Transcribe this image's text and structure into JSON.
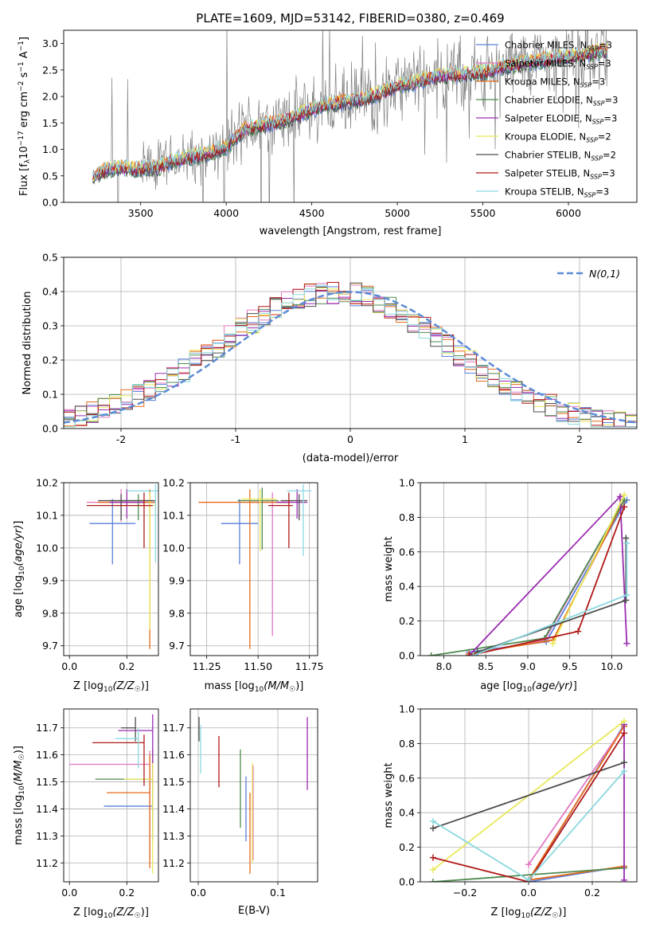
{
  "colors": {
    "chabrier_miles": "#5b7fdc",
    "salpeter_miles": "#e377c2",
    "kroupa_miles": "#e56b18",
    "chabrier_elodie": "#4f8a4f",
    "salpeter_elodie": "#9a2cb0",
    "kroupa_elodie": "#e8e858",
    "chabrier_stelib": "#4d4d4d",
    "salpeter_stelib": "#b01818",
    "kroupa_stelib": "#8ad8e0",
    "normal": "#5b8bd6",
    "grid": "#b0b0b0"
  },
  "chart_data": [
    {
      "type": "line",
      "title": "PLATE=1609, MJD=53142, FIBERID=0380, z=0.469",
      "xlabel": "wavelength [Angstrom, rest frame]",
      "ylabel": "Flux [fλ10⁻¹⁷ erg cm⁻² s⁻¹ A⁻¹]",
      "xlim": [
        3050,
        6400
      ],
      "ylim": [
        0,
        3.25
      ],
      "xticks": [
        3500,
        4000,
        4500,
        5000,
        5500,
        6000
      ],
      "yticks": [
        0.0,
        0.5,
        1.0,
        1.5,
        2.0,
        2.5,
        3.0
      ],
      "grid": false,
      "legend_position": "top-right",
      "continuum": {
        "x": [
          3220,
          3300,
          3400,
          3500,
          3600,
          3700,
          3800,
          3900,
          4000,
          4100,
          4200,
          4300,
          4400,
          4500,
          4600,
          4700,
          4800,
          4900,
          5000,
          5100,
          5200,
          5300,
          5400,
          5500,
          5600,
          5700,
          5800,
          5900,
          6000,
          6100,
          6200
        ],
        "y": [
          0.45,
          0.62,
          0.65,
          0.62,
          0.66,
          0.78,
          0.85,
          0.92,
          1.05,
          1.35,
          1.45,
          1.5,
          1.62,
          1.75,
          1.85,
          1.9,
          1.95,
          2.05,
          2.2,
          2.25,
          2.35,
          2.4,
          2.42,
          2.45,
          2.55,
          2.6,
          2.65,
          2.7,
          2.75,
          2.8,
          2.85
        ]
      },
      "series": [
        {
          "name": "Chabrier MILES, N_SSP=3"
        },
        {
          "name": "Salpeter MILES, N_SSP=3"
        },
        {
          "name": "Kroupa MILES, N_SSP=3"
        },
        {
          "name": "Chabrier ELODIE, N_SSP=3"
        },
        {
          "name": "Salpeter ELODIE, N_SSP=3"
        },
        {
          "name": "Kroupa ELODIE, N_SSP=2"
        },
        {
          "name": "Chabrier STELIB, N_SSP=2"
        },
        {
          "name": "Salpeter STELIB, N_SSP=3"
        },
        {
          "name": "Kroupa STELIB, N_SSP=3"
        }
      ]
    },
    {
      "type": "histogram",
      "xlabel": "(data-model)/error",
      "ylabel": "Normed distribution",
      "xlim": [
        -2.5,
        2.5
      ],
      "ylim": [
        0,
        0.5
      ],
      "xticks": [
        -2,
        -1,
        0,
        1,
        2
      ],
      "yticks": [
        0.0,
        0.1,
        0.2,
        0.3,
        0.4,
        0.5
      ],
      "grid": true,
      "legend": "N(0,1)",
      "legend_position": "top-right",
      "bin_width": 0.1,
      "bin_start": -2.5
    },
    {
      "type": "errorbar",
      "xlabel": "Z [log10(Z/Z☉)]",
      "ylabel": "age  [log10(age/yr)]",
      "xlim": [
        -0.02,
        0.31
      ],
      "ylim": [
        9.67,
        10.2
      ],
      "xticks": [
        0.0,
        0.2
      ],
      "yticks": [
        9.7,
        9.8,
        9.9,
        10.0,
        10.1,
        10.2
      ],
      "grid": true,
      "points": [
        {
          "series": "chabrier_miles",
          "x": 0.15,
          "y": 10.075,
          "xerr": [
            0.08,
            0.08
          ],
          "yerr": [
            0.125,
            0.075
          ]
        },
        {
          "series": "salpeter_miles",
          "x": 0.18,
          "y": 10.14,
          "xerr": [
            0.12,
            0.12
          ],
          "yerr": [
            0.06,
            0.04
          ]
        },
        {
          "series": "kroupa_miles",
          "x": 0.28,
          "y": 10.14,
          "xerr": [
            0.18,
            0.02
          ],
          "yerr": [
            0.45,
            0.04
          ]
        },
        {
          "series": "chabrier_elodie",
          "x": 0.24,
          "y": 10.145,
          "xerr": [
            0.1,
            0.05
          ],
          "yerr": [
            0.06,
            0.02
          ]
        },
        {
          "series": "salpeter_elodie",
          "x": 0.2,
          "y": 10.14,
          "xerr": [
            0.06,
            0.06
          ],
          "yerr": [
            0.05,
            0.04
          ]
        },
        {
          "series": "kroupa_elodie",
          "x": 0.28,
          "y": 10.13,
          "xerr": [
            0.1,
            0.02
          ],
          "yerr": [
            0.38,
            0.04
          ]
        },
        {
          "series": "chabrier_stelib",
          "x": 0.18,
          "y": 10.145,
          "xerr": [
            0.08,
            0.12
          ],
          "yerr": [
            0.06,
            0.02
          ]
        },
        {
          "series": "salpeter_stelib",
          "x": 0.26,
          "y": 10.13,
          "xerr": [
            0.2,
            0.03
          ],
          "yerr": [
            0.13,
            0.04
          ]
        },
        {
          "series": "kroupa_stelib",
          "x": 0.3,
          "y": 10.175,
          "xerr": [
            0.1,
            0.02
          ],
          "yerr": [
            0.22,
            0.02
          ]
        }
      ]
    },
    {
      "type": "errorbar",
      "xlabel": "mass [log10(M/M☉)]",
      "ylabel": "",
      "xlim": [
        11.17,
        11.79
      ],
      "ylim": [
        9.67,
        10.2
      ],
      "xticks": [
        11.25,
        11.5,
        11.75
      ],
      "yticks": [
        9.7,
        9.8,
        9.9,
        10.0,
        10.1,
        10.2
      ],
      "grid": true,
      "points": [
        {
          "series": "chabrier_miles",
          "x": 11.41,
          "y": 10.075,
          "xerr": [
            0.09,
            0.09
          ],
          "yerr": [
            0.125,
            0.075
          ]
        },
        {
          "series": "salpeter_miles",
          "x": 11.57,
          "y": 10.14,
          "xerr": [
            0.11,
            0.08
          ],
          "yerr": [
            0.41,
            0.03
          ]
        },
        {
          "series": "kroupa_miles",
          "x": 11.46,
          "y": 10.14,
          "xerr": [
            0.25,
            0.2
          ],
          "yerr": [
            0.45,
            0.04
          ]
        },
        {
          "series": "chabrier_elodie",
          "x": 11.52,
          "y": 10.145,
          "xerr": [
            0.12,
            0.08
          ],
          "yerr": [
            0.15,
            0.04
          ]
        },
        {
          "series": "salpeter_elodie",
          "x": 11.69,
          "y": 10.14,
          "xerr": [
            0.1,
            0.05
          ],
          "yerr": [
            0.05,
            0.04
          ]
        },
        {
          "series": "kroupa_elodie",
          "x": 11.51,
          "y": 10.15,
          "xerr": [
            0.09,
            0.08
          ],
          "yerr": [
            0.16,
            0.03
          ]
        },
        {
          "series": "chabrier_stelib",
          "x": 11.7,
          "y": 10.145,
          "xerr": [
            0.09,
            0.04
          ],
          "yerr": [
            0.06,
            0.02
          ]
        },
        {
          "series": "salpeter_stelib",
          "x": 11.65,
          "y": 10.13,
          "xerr": [
            0.1,
            0.02
          ],
          "yerr": [
            0.13,
            0.04
          ]
        },
        {
          "series": "kroupa_stelib",
          "x": 11.72,
          "y": 10.175,
          "xerr": [
            0.08,
            0.04
          ],
          "yerr": [
            0.2,
            0.02
          ]
        }
      ]
    },
    {
      "type": "line",
      "xlabel": "age  [log10(age/yr)]",
      "ylabel": "mass weight",
      "xlim": [
        7.72,
        10.3
      ],
      "ylim": [
        0,
        1.0
      ],
      "xticks": [
        8.0,
        8.5,
        9.0,
        9.5,
        10.0
      ],
      "yticks": [
        0.0,
        0.2,
        0.4,
        0.6,
        0.8,
        1.0
      ],
      "grid": true,
      "series_points": [
        {
          "series": "chabrier_miles",
          "x": [
            8.3,
            9.22,
            10.18
          ],
          "y": [
            0.02,
            0.08,
            0.9
          ]
        },
        {
          "series": "salpeter_miles",
          "x": [
            8.34,
            9.2,
            10.15
          ],
          "y": [
            0.01,
            0.09,
            0.9
          ]
        },
        {
          "series": "kroupa_miles",
          "x": [
            8.3,
            9.3,
            10.15
          ],
          "y": [
            0.01,
            0.09,
            0.9
          ]
        },
        {
          "series": "chabrier_elodie",
          "x": [
            7.85,
            9.2,
            10.15
          ],
          "y": [
            0.0,
            0.1,
            0.9
          ]
        },
        {
          "series": "salpeter_elodie",
          "x": [
            8.3,
            10.1,
            10.18
          ],
          "y": [
            0.0,
            0.92,
            0.07
          ]
        },
        {
          "series": "kroupa_elodie",
          "x": [
            9.3,
            10.15
          ],
          "y": [
            0.07,
            0.93
          ]
        },
        {
          "series": "chabrier_stelib",
          "x": [
            8.4,
            10.17,
            10.17
          ],
          "y": [
            0.02,
            0.32,
            0.68
          ]
        },
        {
          "series": "salpeter_stelib",
          "x": [
            8.3,
            9.6,
            10.15
          ],
          "y": [
            0.0,
            0.14,
            0.86
          ]
        },
        {
          "series": "kroupa_stelib",
          "x": [
            8.35,
            10.18,
            10.18
          ],
          "y": [
            0.0,
            0.35,
            0.65
          ]
        }
      ]
    },
    {
      "type": "errorbar",
      "xlabel": "Z [log10(Z/Z☉)]",
      "ylabel": "mass [log10(M/M☉)]",
      "xlim": [
        -0.02,
        0.31
      ],
      "ylim": [
        11.13,
        11.77
      ],
      "xticks": [
        0.0,
        0.2
      ],
      "yticks": [
        11.2,
        11.3,
        11.4,
        11.5,
        11.6,
        11.7
      ],
      "grid": true,
      "points": [
        {
          "series": "chabrier_miles",
          "x": 0.29,
          "y": 11.41,
          "xerr": [
            0.17,
            0.0
          ],
          "yerr": [
            0.13,
            0.06
          ]
        },
        {
          "series": "salpeter_miles",
          "x": 0.28,
          "y": 11.565,
          "xerr": [
            0.28,
            0.0
          ],
          "yerr": [
            0.35,
            0.05
          ]
        },
        {
          "series": "kroupa_miles",
          "x": 0.28,
          "y": 11.46,
          "xerr": [
            0.15,
            0.0
          ],
          "yerr": [
            0.28,
            0.14
          ]
        },
        {
          "series": "chabrier_elodie",
          "x": 0.29,
          "y": 11.51,
          "xerr": [
            0.2,
            0.0
          ],
          "yerr": [
            0.18,
            0.11
          ]
        },
        {
          "series": "salpeter_elodie",
          "x": 0.29,
          "y": 11.69,
          "xerr": [
            0.12,
            0.0
          ],
          "yerr": [
            0.21,
            0.06
          ]
        },
        {
          "series": "kroupa_elodie",
          "x": 0.29,
          "y": 11.51,
          "xerr": [
            0.1,
            0.0
          ],
          "yerr": [
            0.35,
            0.06
          ]
        },
        {
          "series": "chabrier_stelib",
          "x": 0.23,
          "y": 11.7,
          "xerr": [
            0.05,
            0.0
          ],
          "yerr": [
            0.05,
            0.04
          ]
        },
        {
          "series": "salpeter_stelib",
          "x": 0.26,
          "y": 11.645,
          "xerr": [
            0.18,
            0.0
          ],
          "yerr": [
            0.16,
            0.03
          ]
        },
        {
          "series": "kroupa_stelib",
          "x": 0.24,
          "y": 11.66,
          "xerr": [
            0.08,
            0.0
          ],
          "yerr": [
            0.11,
            0.04
          ]
        }
      ]
    },
    {
      "type": "errorbar",
      "xlabel": "E(B-V)",
      "ylabel": "",
      "xlim": [
        -0.01,
        0.15
      ],
      "ylim": [
        11.13,
        11.77
      ],
      "xticks": [
        0.0,
        0.1
      ],
      "yticks": [
        11.2,
        11.3,
        11.4,
        11.5,
        11.6,
        11.7
      ],
      "grid": true,
      "points": [
        {
          "series": "chabrier_miles",
          "x": 0.06,
          "y": 11.41,
          "yerr": [
            0.13,
            0.11
          ]
        },
        {
          "series": "salpeter_miles",
          "x": 0.069,
          "y": 11.56,
          "yerr": [
            0.35,
            0.0
          ]
        },
        {
          "series": "kroupa_miles",
          "x": 0.065,
          "y": 11.46,
          "yerr": [
            0.3,
            0.0
          ]
        },
        {
          "series": "chabrier_elodie",
          "x": 0.053,
          "y": 11.5,
          "yerr": [
            0.17,
            0.12
          ]
        },
        {
          "series": "salpeter_elodie",
          "x": 0.137,
          "y": 11.65,
          "yerr": [
            0.18,
            0.09
          ]
        },
        {
          "series": "kroupa_elodie",
          "x": 0.068,
          "y": 11.5,
          "yerr": [
            0.3,
            0.07
          ]
        },
        {
          "series": "chabrier_stelib",
          "x": 0.001,
          "y": 11.7,
          "yerr": [
            0.05,
            0.04
          ]
        },
        {
          "series": "salpeter_stelib",
          "x": 0.026,
          "y": 11.6,
          "yerr": [
            0.12,
            0.07
          ]
        },
        {
          "series": "kroupa_stelib",
          "x": 0.003,
          "y": 11.65,
          "yerr": [
            0.12,
            0.06
          ]
        }
      ]
    },
    {
      "type": "line",
      "xlabel": "Z [log10(Z/Z☉)]",
      "ylabel": "mass weight",
      "xlim": [
        -0.34,
        0.34
      ],
      "ylim": [
        0,
        1.0
      ],
      "xticks": [
        -0.2,
        0.0,
        0.2
      ],
      "yticks": [
        0.0,
        0.2,
        0.4,
        0.6,
        0.8,
        1.0
      ],
      "grid": true,
      "series_points": [
        {
          "series": "chabrier_miles",
          "x": [
            0.3,
            0.0,
            0.3
          ],
          "y": [
            0.09,
            0.0,
            0.91
          ]
        },
        {
          "series": "salpeter_miles",
          "x": [
            0.0,
            0.3
          ],
          "y": [
            0.1,
            0.9
          ]
        },
        {
          "series": "kroupa_miles",
          "x": [
            0.3,
            0.0,
            0.3
          ],
          "y": [
            0.09,
            0.01,
            0.9
          ]
        },
        {
          "series": "chabrier_elodie",
          "x": [
            -0.3,
            0.3
          ],
          "y": [
            0.0,
            0.08
          ]
        },
        {
          "series": "salpeter_elodie",
          "x": [
            0.3,
            0.3
          ],
          "y": [
            0.01,
            0.91
          ]
        },
        {
          "series": "kroupa_elodie",
          "x": [
            -0.3,
            0.3
          ],
          "y": [
            0.07,
            0.93
          ]
        },
        {
          "series": "chabrier_stelib",
          "x": [
            -0.3,
            0.3
          ],
          "y": [
            0.31,
            0.69
          ]
        },
        {
          "series": "salpeter_stelib",
          "x": [
            -0.3,
            0.0,
            0.3
          ],
          "y": [
            0.14,
            0.0,
            0.86
          ]
        },
        {
          "series": "kroupa_stelib",
          "x": [
            -0.3,
            0.0,
            0.3
          ],
          "y": [
            0.35,
            0.01,
            0.64
          ]
        }
      ]
    }
  ]
}
